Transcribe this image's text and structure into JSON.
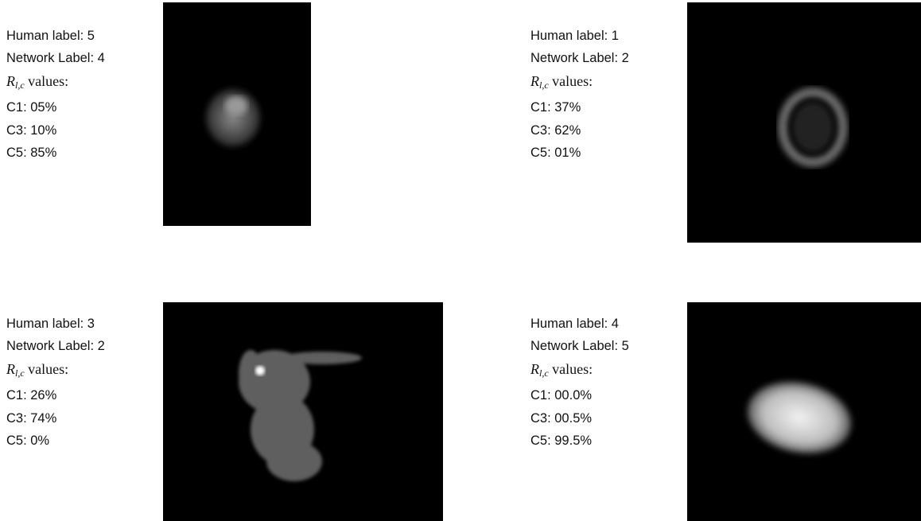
{
  "panels": [
    {
      "human_label": "Human label: 5",
      "network_label": "Network Label: 4",
      "r_label": {
        "symbol": "R",
        "subscript": "l,c",
        "text": "values:"
      },
      "values": [
        "C1: 05%",
        "C3: 10%",
        "C5: 85%"
      ]
    },
    {
      "human_label": "Human label: 1",
      "network_label": "Network Label: 2",
      "r_label": {
        "symbol": "R",
        "subscript": "l,c",
        "text": "values:"
      },
      "values": [
        "C1: 37%",
        "C3: 62%",
        "C5: 01%"
      ]
    },
    {
      "human_label": "Human label: 3",
      "network_label": "Network Label: 2",
      "r_label": {
        "symbol": "R",
        "subscript": "l,c",
        "text": "values:"
      },
      "values": [
        "C1: 26%",
        "C3: 74%",
        "C5: 0%"
      ]
    },
    {
      "human_label": "Human label: 4",
      "network_label": "Network Label: 5",
      "r_label": {
        "symbol": "R",
        "subscript": "l,c",
        "text": "values:"
      },
      "values": [
        "C1: 00.0%",
        "C3: 00.5%",
        "C5: 99.5%"
      ]
    }
  ]
}
